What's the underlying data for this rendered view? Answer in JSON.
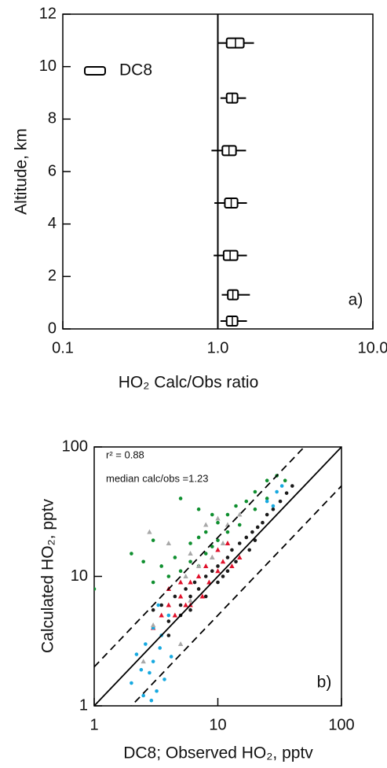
{
  "chart_data": [
    {
      "type": "box",
      "xlabel": "HO₂ Calc/Obs ratio",
      "ylabel": "Altitude, km",
      "annotation": "a)",
      "xscale": "log",
      "xlim": [
        0.1,
        10
      ],
      "xticks": [
        0.1,
        {
          "value": 1,
          "label": "1.0"
        },
        {
          "value": 10,
          "label": "10.0"
        }
      ],
      "ylim": [
        0,
        12
      ],
      "yticks": [
        0,
        2,
        4,
        6,
        8,
        10,
        12
      ],
      "reference_x": 1,
      "legend": "upper left",
      "series": [
        {
          "name": "DC8",
          "color": "#000000",
          "y": [
            10.9,
            8.8,
            6.8,
            4.8,
            2.8,
            1.3,
            0.3
          ],
          "whislo": [
            1.0,
            1.04,
            0.91,
            0.95,
            0.94,
            1.06,
            1.04
          ],
          "q1": [
            1.14,
            1.14,
            1.07,
            1.11,
            1.09,
            1.16,
            1.14
          ],
          "med": [
            1.3,
            1.24,
            1.18,
            1.22,
            1.2,
            1.25,
            1.24
          ],
          "q3": [
            1.47,
            1.34,
            1.31,
            1.34,
            1.34,
            1.35,
            1.34
          ],
          "whishi": [
            1.71,
            1.52,
            1.52,
            1.54,
            1.54,
            1.61,
            1.54
          ]
        }
      ]
    },
    {
      "type": "scatter",
      "xlabel": "DC8; Observed HO₂, pptv",
      "ylabel": "Calculated HO₂, pptv",
      "annotations": [
        "r² = 0.88",
        "median calc/obs =1.23",
        "b)"
      ],
      "xscale": "log",
      "yscale": "log",
      "xlim": [
        1,
        100
      ],
      "ylim": [
        1,
        100
      ],
      "xticks": [
        1,
        10,
        100
      ],
      "yticks": [
        1,
        10,
        100
      ],
      "ratio_lines": [
        {
          "ratio": 1,
          "style": "solid"
        },
        {
          "ratio": 2,
          "style": "dashed"
        },
        {
          "ratio": 0.5,
          "style": "dashed"
        }
      ],
      "series": [
        {
          "color": "#1a1a1a",
          "marker": "dot",
          "x": [
            3,
            3.5,
            4,
            4.5,
            5,
            5.5,
            6,
            6.5,
            7,
            8,
            8,
            9,
            10,
            11,
            12,
            13,
            14,
            15,
            17,
            19,
            21,
            23,
            25,
            28,
            32,
            36,
            40,
            3,
            4,
            5,
            6,
            10,
            12,
            18,
            20
          ],
          "values": [
            5.5,
            6,
            4.5,
            7,
            6,
            8,
            7,
            9,
            8,
            10,
            7,
            11,
            12,
            10,
            14,
            16,
            13,
            18,
            20,
            22,
            24,
            26,
            30,
            33,
            38,
            44,
            50,
            4,
            3.5,
            5,
            5.5,
            9,
            11,
            16,
            19
          ]
        },
        {
          "color": "#0f8f2f",
          "marker": "dot",
          "x": [
            1,
            2,
            2.5,
            3,
            3.5,
            4,
            4.5,
            5,
            5,
            6,
            6,
            7,
            7,
            8,
            8,
            9,
            10,
            10,
            12,
            12,
            14,
            15,
            17,
            20,
            20,
            25,
            25,
            30,
            35,
            7,
            9,
            3
          ],
          "values": [
            8,
            15,
            13,
            9,
            12,
            10,
            14,
            40,
            11,
            18,
            13,
            20,
            12,
            22,
            15,
            17,
            26,
            19,
            30,
            22,
            35,
            25,
            38,
            45,
            33,
            55,
            40,
            60,
            55,
            33,
            30,
            19
          ]
        },
        {
          "color": "#e0102a",
          "marker": "triangle",
          "x": [
            3,
            3.5,
            4,
            4.5,
            5,
            5.5,
            6,
            6,
            7,
            7.5,
            8,
            8.5,
            9,
            10,
            10,
            11,
            12,
            13,
            15,
            4,
            5
          ],
          "values": [
            4,
            5,
            6,
            5,
            7,
            6,
            9,
            6,
            10,
            7,
            12,
            9,
            14,
            11,
            16,
            13,
            18,
            12,
            14,
            8,
            9
          ]
        },
        {
          "color": "#17a9e0",
          "marker": "dot",
          "x": [
            2,
            2.2,
            2.5,
            2.6,
            2.8,
            3,
            3,
            3.2,
            3.4,
            3.5,
            3.7,
            4,
            4.2,
            2.4,
            2.9,
            3.3,
            30,
            28,
            33,
            25
          ],
          "values": [
            1.5,
            2.5,
            1.2,
            3,
            1.8,
            2.2,
            4,
            1.3,
            2.8,
            3.5,
            1.6,
            5,
            2.4,
            1.9,
            1.1,
            6,
            45,
            35,
            50,
            38
          ]
        },
        {
          "color": "#a8a8a8",
          "marker": "triangle",
          "x": [
            2.8,
            4,
            3,
            5,
            6,
            8,
            10,
            7,
            9,
            12,
            5.5,
            2.5,
            6,
            11,
            15
          ],
          "values": [
            22,
            18,
            4.2,
            3,
            15,
            25,
            28,
            12,
            14,
            25,
            10,
            2.2,
            6.5,
            18,
            30
          ]
        }
      ]
    }
  ]
}
